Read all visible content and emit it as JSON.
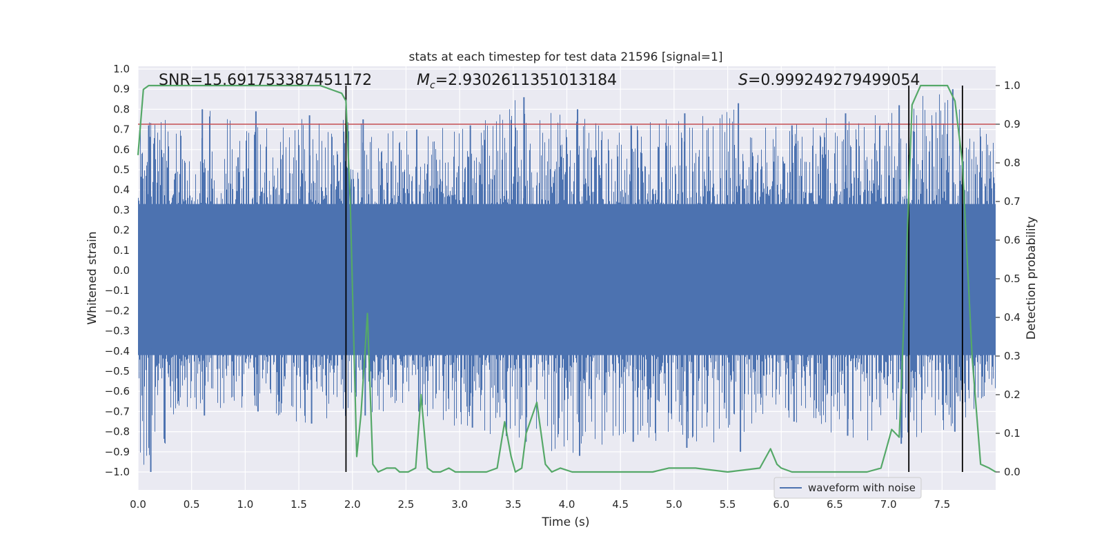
{
  "chart_data": {
    "type": "line",
    "title": "stats at each timestep for test data 21596 [signal=1]",
    "xlabel": "Time (s)",
    "ylabel": "Whitened strain",
    "y2label": "Detection probability",
    "xlim": [
      0.0,
      8.0
    ],
    "ylim": [
      -1.0,
      1.0
    ],
    "y2lim": [
      0.0,
      1.0
    ],
    "xticks": [
      "0.0",
      "0.5",
      "1.0",
      "1.5",
      "2.0",
      "2.5",
      "3.0",
      "3.5",
      "4.0",
      "4.5",
      "5.0",
      "5.5",
      "6.0",
      "6.5",
      "7.0",
      "7.5"
    ],
    "yticks": [
      "1.0",
      "0.9",
      "0.8",
      "0.7",
      "0.6",
      "0.5",
      "0.4",
      "0.3",
      "0.2",
      "0.1",
      "0.0",
      "−0.1",
      "−0.2",
      "−0.3",
      "−0.4",
      "−0.5",
      "−0.6",
      "−0.7",
      "−0.8",
      "−0.9",
      "−1.0"
    ],
    "y2ticks": [
      "1.0",
      "0.9",
      "0.8",
      "0.7",
      "0.6",
      "0.5",
      "0.4",
      "0.3",
      "0.2",
      "0.1",
      "0.0"
    ],
    "grid": true,
    "legend": {
      "position": "bottom-right",
      "entries": [
        "waveform with noise"
      ]
    },
    "annotations": {
      "snr": "SNR=15.691753387451172",
      "mc_symbol": "M",
      "mc_sub": "c",
      "mc_value": "=2.9302611351013184",
      "s_symbol": "S",
      "s_value": "=0.999249279499054"
    },
    "threshold": 0.9,
    "vertical_lines": [
      1.94,
      7.19,
      7.69
    ],
    "strain_envelope": {
      "x": [
        0.0,
        0.5,
        1.0,
        1.5,
        2.0,
        2.5,
        3.0,
        3.5,
        4.0,
        4.5,
        5.0,
        5.5,
        6.0,
        6.5,
        7.0,
        7.5,
        8.0
      ],
      "peak_upper": [
        0.72,
        0.8,
        0.79,
        0.77,
        0.75,
        0.7,
        0.72,
        0.86,
        0.8,
        0.72,
        0.78,
        0.83,
        0.72,
        0.78,
        0.82,
        0.9,
        0.65
      ],
      "peak_lower": [
        -1.0,
        -0.72,
        -0.7,
        -0.76,
        -0.72,
        -0.7,
        -0.78,
        -0.85,
        -0.92,
        -0.85,
        -0.88,
        -0.9,
        -0.75,
        -0.82,
        -0.86,
        -0.8,
        -0.65
      ]
    },
    "series": [
      {
        "name": "detection probability",
        "color": "#55a868",
        "x": [
          0.0,
          0.05,
          0.1,
          0.2,
          0.5,
          0.8,
          1.0,
          1.2,
          1.5,
          1.7,
          1.8,
          1.9,
          1.94,
          1.98,
          2.04,
          2.08,
          2.14,
          2.19,
          2.24,
          2.32,
          2.4,
          2.44,
          2.52,
          2.59,
          2.64,
          2.7,
          2.75,
          2.82,
          2.9,
          2.96,
          3.05,
          3.15,
          3.25,
          3.35,
          3.42,
          3.48,
          3.52,
          3.58,
          3.62,
          3.72,
          3.8,
          3.86,
          3.94,
          4.05,
          4.15,
          4.35,
          4.6,
          4.8,
          4.95,
          5.2,
          5.5,
          5.8,
          5.9,
          5.96,
          6.0,
          6.1,
          6.5,
          6.8,
          6.93,
          6.97,
          7.03,
          7.1,
          7.16,
          7.22,
          7.3,
          7.38,
          7.45,
          7.55,
          7.62,
          7.69,
          7.78,
          7.86,
          7.94,
          8.0
        ],
        "y": [
          0.82,
          0.99,
          1.0,
          1.0,
          1.0,
          1.0,
          1.0,
          1.0,
          1.0,
          1.0,
          0.99,
          0.98,
          0.96,
          0.7,
          0.04,
          0.15,
          0.41,
          0.02,
          0.0,
          0.01,
          0.01,
          0.0,
          0.0,
          0.01,
          0.2,
          0.01,
          0.0,
          0.0,
          0.01,
          0.0,
          0.0,
          0.0,
          0.0,
          0.01,
          0.13,
          0.04,
          0.0,
          0.01,
          0.1,
          0.18,
          0.02,
          0.0,
          0.01,
          0.0,
          0.0,
          0.0,
          0.0,
          0.0,
          0.01,
          0.01,
          0.0,
          0.01,
          0.06,
          0.02,
          0.01,
          0.0,
          0.0,
          0.0,
          0.01,
          0.05,
          0.11,
          0.09,
          0.5,
          0.95,
          1.0,
          1.0,
          1.0,
          1.0,
          0.96,
          0.8,
          0.3,
          0.02,
          0.01,
          0.0
        ]
      },
      {
        "name": "waveform with noise",
        "color": "#4c72b0"
      }
    ],
    "colors": {
      "background": "#eaeaf2",
      "grid": "#ffffff",
      "threshold": "#c44e52",
      "vline": "#000000"
    }
  }
}
